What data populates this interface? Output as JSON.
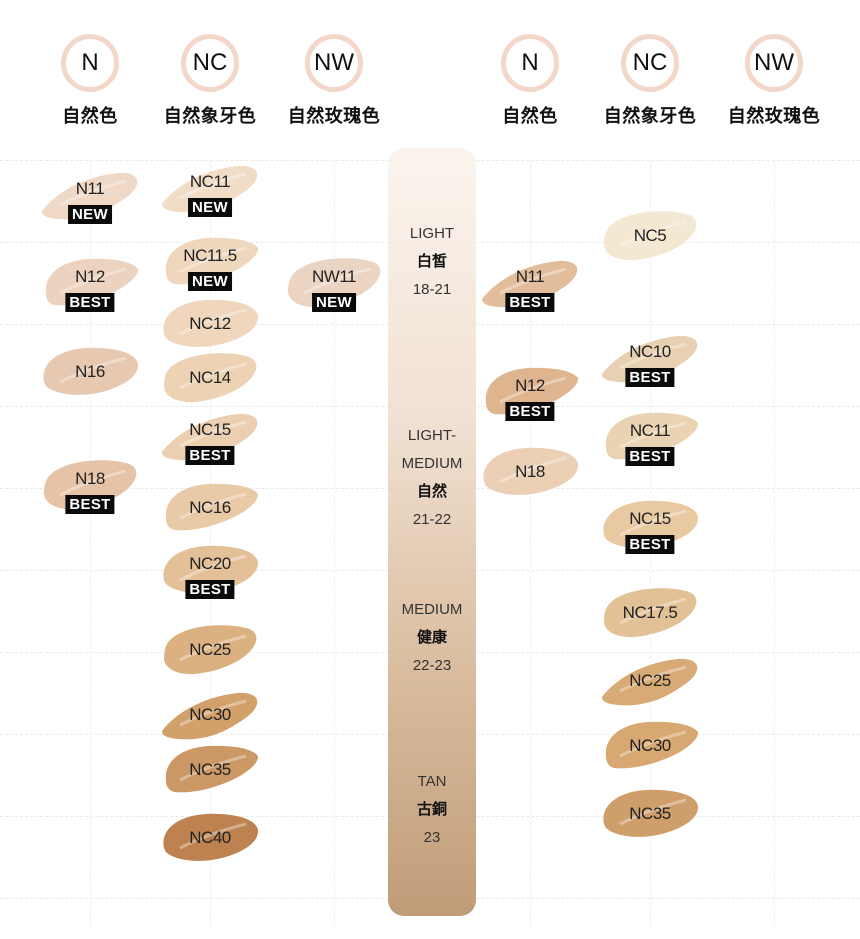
{
  "headers": [
    {
      "code": "N",
      "name": "自然色"
    },
    {
      "code": "NC",
      "name": "自然象牙色"
    },
    {
      "code": "NW",
      "name": "自然玫瑰色"
    },
    {
      "code": "N",
      "name": "自然色"
    },
    {
      "code": "NC",
      "name": "自然象牙色"
    },
    {
      "code": "NW",
      "name": "自然玫瑰色"
    }
  ],
  "tones": [
    {
      "en": "LIGHT",
      "zh": "白皙",
      "range": "18-21"
    },
    {
      "en": "LIGHT-",
      "en2": "MEDIUM",
      "zh": "自然",
      "range": "21-22"
    },
    {
      "en": "MEDIUM",
      "zh": "健康",
      "range": "22-23"
    },
    {
      "en": "TAN",
      "zh": "古銅",
      "range": "23"
    }
  ],
  "left": {
    "n": [
      {
        "code": "N11",
        "tag": "NEW",
        "color": "#efd8c6"
      },
      {
        "code": "N12",
        "tag": "BEST",
        "color": "#ecd3bf"
      },
      {
        "code": "N16",
        "tag": "",
        "color": "#e7c9b1"
      },
      {
        "code": "N18",
        "tag": "BEST",
        "color": "#e6c3a6"
      }
    ],
    "nc": [
      {
        "code": "NC11",
        "tag": "NEW",
        "color": "#f1dcc6"
      },
      {
        "code": "NC11.5",
        "tag": "NEW",
        "color": "#efd7bd"
      },
      {
        "code": "NC12",
        "tag": "",
        "color": "#efd6bc"
      },
      {
        "code": "NC14",
        "tag": "",
        "color": "#edd2b4"
      },
      {
        "code": "NC15",
        "tag": "BEST",
        "color": "#ebcfb0"
      },
      {
        "code": "NC16",
        "tag": "",
        "color": "#e9caa7"
      },
      {
        "code": "NC20",
        "tag": "BEST",
        "color": "#e4c099"
      },
      {
        "code": "NC25",
        "tag": "",
        "color": "#dcb181"
      },
      {
        "code": "NC30",
        "tag": "",
        "color": "#d2a06b"
      },
      {
        "code": "NC35",
        "tag": "",
        "color": "#cc9866"
      },
      {
        "code": "NC40",
        "tag": "",
        "color": "#bd8250"
      }
    ],
    "nw": [
      {
        "code": "NW11",
        "tag": "NEW",
        "color": "#ecd4c3"
      }
    ]
  },
  "right": {
    "n": [
      {
        "code": "N11",
        "tag": "BEST",
        "color": "#e2bd9c"
      },
      {
        "code": "N12",
        "tag": "BEST",
        "color": "#dfb590"
      },
      {
        "code": "N18",
        "tag": "",
        "color": "#ecd0b6"
      }
    ],
    "nc": [
      {
        "code": "NC5",
        "tag": "",
        "color": "#f3e8d2"
      },
      {
        "code": "NC10",
        "tag": "BEST",
        "color": "#e8d1b2"
      },
      {
        "code": "NC11",
        "tag": "BEST",
        "color": "#ead3b2"
      },
      {
        "code": "NC15",
        "tag": "BEST",
        "color": "#e8c9a2"
      },
      {
        "code": "NC17.5",
        "tag": "",
        "color": "#e3c196"
      },
      {
        "code": "NC25",
        "tag": "",
        "color": "#d8aa75"
      },
      {
        "code": "NC30",
        "tag": "",
        "color": "#d7a871"
      },
      {
        "code": "NC35",
        "tag": "",
        "color": "#cf9f6b"
      }
    ]
  }
}
